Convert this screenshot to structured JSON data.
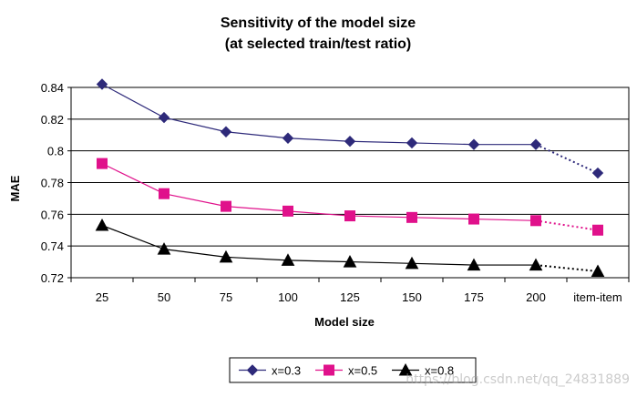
{
  "chart_data": {
    "type": "line",
    "title": "Sensitivity of the model size",
    "subtitle": "(at selected train/test ratio)",
    "xlabel": "Model size",
    "ylabel": "MAE",
    "categories": [
      "25",
      "50",
      "75",
      "100",
      "125",
      "150",
      "175",
      "200",
      "item-item"
    ],
    "ylim": [
      0.72,
      0.84
    ],
    "yticks": [
      0.72,
      0.74,
      0.76,
      0.78,
      0.8,
      0.82,
      0.84
    ],
    "ytick_labels": [
      "0.72",
      "0.74",
      "0.76",
      "0.78",
      "0.8",
      "0.82",
      "0.84"
    ],
    "dotted_last_segment": true,
    "legend_position": "bottom",
    "series": [
      {
        "name": "x=0.3",
        "color": "#2e2a7a",
        "marker": "diamond",
        "values": [
          0.842,
          0.821,
          0.812,
          0.808,
          0.806,
          0.805,
          0.804,
          0.804,
          0.786
        ]
      },
      {
        "name": "x=0.5",
        "color": "#e0118b",
        "marker": "square",
        "values": [
          0.792,
          0.773,
          0.765,
          0.762,
          0.759,
          0.758,
          0.757,
          0.756,
          0.75
        ]
      },
      {
        "name": "x=0.8",
        "color": "#000000",
        "marker": "triangle",
        "values": [
          0.753,
          0.738,
          0.733,
          0.731,
          0.73,
          0.729,
          0.728,
          0.728,
          0.724
        ]
      }
    ]
  },
  "watermark": "https://blog.csdn.net/qq_24831889"
}
